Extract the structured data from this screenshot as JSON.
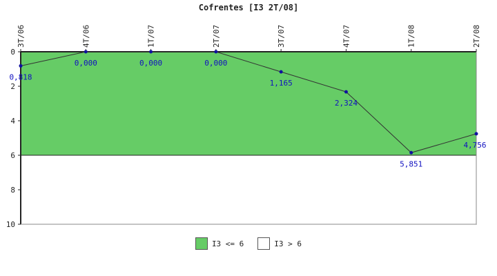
{
  "chart_data": {
    "type": "line",
    "title": "Cofrentes [I3 2T/08]",
    "categories": [
      "3T/06",
      "4T/06",
      "1T/07",
      "2T/07",
      "3T/07",
      "4T/07",
      "1T/08",
      "2T/08"
    ],
    "values": [
      0.818,
      0.0,
      0.0,
      0.0,
      1.165,
      2.324,
      5.851,
      4.756
    ],
    "value_labels": [
      "0,818",
      "0,000",
      "0,000",
      "0,000",
      "1,165",
      "2,324",
      "5,851",
      "4,756"
    ],
    "ylim": [
      0,
      10
    ],
    "y_inverted": true,
    "y_ticks": [
      0,
      2,
      4,
      6,
      8,
      10
    ],
    "bands": [
      {
        "name": "I3 <= 6",
        "from": 0,
        "to": 6,
        "color": "#66cc66"
      },
      {
        "name": "I3 > 6",
        "from": 6,
        "to": 10,
        "color": "#ffffff"
      }
    ],
    "line_color": "#333333",
    "marker_color": "#1010a0",
    "label_color": "#1010c0",
    "legend_position": "bottom",
    "grid": false
  }
}
